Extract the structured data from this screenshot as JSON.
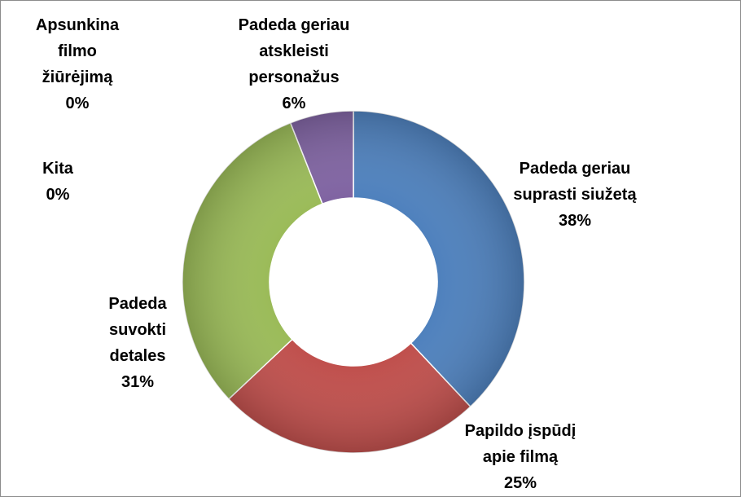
{
  "chart_data": {
    "type": "donut",
    "categories": [
      "Padeda geriau suprasti siužetą",
      "Papildo įspūdį apie filmą",
      "Padeda suvokti detales",
      "Kita",
      "Apsunkina filmo žiūrėjimą",
      "Padeda geriau atskleisti personažus"
    ],
    "values": [
      38,
      25,
      31,
      0,
      0,
      6
    ],
    "value_labels": [
      "38%",
      "25%",
      "31%",
      "0%",
      "0%",
      "6%"
    ],
    "colors": [
      "#4f81bd",
      "#c0504d",
      "#9bbb59",
      "#4bacc6",
      "#f79646",
      "#8064a2"
    ]
  }
}
